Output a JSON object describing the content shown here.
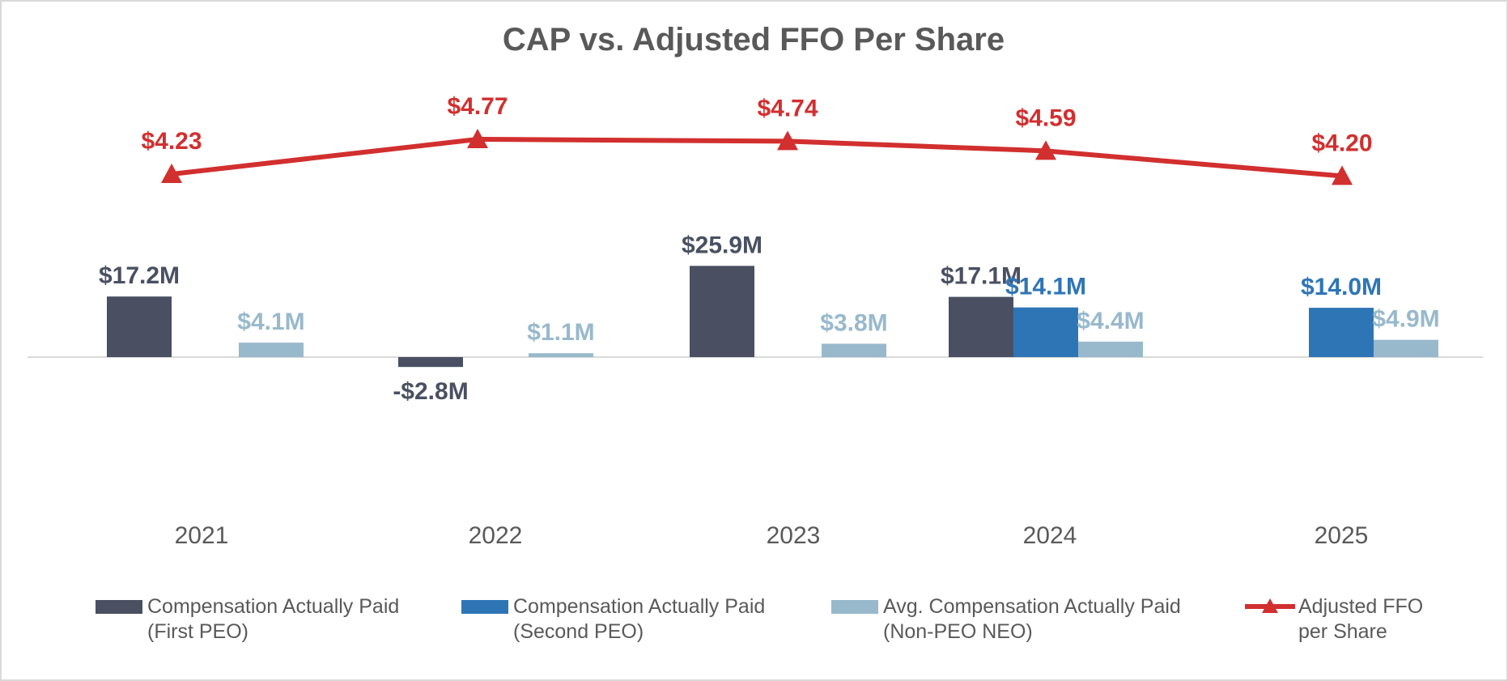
{
  "chart_data": {
    "type": "bar",
    "title": "CAP vs. Adjusted FFO Per Share",
    "categories": [
      "2021",
      "2022",
      "2023",
      "2024",
      "2025"
    ],
    "series": [
      {
        "name": "Compensation Actually Paid (First PEO)",
        "legend_lines": [
          "Compensation Actually Paid",
          "(First PEO)"
        ],
        "kind": "bar",
        "color": "#4a5062",
        "label_color": "#4a5062",
        "values": [
          17.2,
          -2.8,
          25.9,
          17.1,
          null
        ],
        "labels": [
          "$17.2M",
          "-$2.8M",
          "$25.9M",
          "$17.1M",
          null
        ]
      },
      {
        "name": "Compensation Actually Paid (Second PEO)",
        "legend_lines": [
          "Compensation Actually Paid",
          "(Second PEO)"
        ],
        "kind": "bar",
        "color": "#2e75b6",
        "label_color": "#2e75b6",
        "values": [
          null,
          null,
          null,
          14.1,
          14.0
        ],
        "labels": [
          null,
          null,
          null,
          "$14.1M",
          "$14.0M"
        ]
      },
      {
        "name": "Avg. Compensation Actually Paid (Non-PEO NEO)",
        "legend_lines": [
          "Avg. Compensation Actually Paid",
          "(Non-PEO NEO)"
        ],
        "kind": "bar",
        "color": "#98b9cc",
        "label_color": "#98b9cc",
        "values": [
          4.1,
          1.1,
          3.8,
          4.4,
          4.9
        ],
        "labels": [
          "$4.1M",
          "$1.1M",
          "$3.8M",
          "$4.4M",
          "$4.9M"
        ]
      },
      {
        "name": "Adjusted FFO per Share",
        "legend_lines": [
          "Adjusted FFO",
          "per Share"
        ],
        "kind": "line",
        "color": "#d22f2f",
        "label_color": "#d22f2f",
        "values": [
          4.23,
          4.77,
          4.74,
          4.59,
          4.2
        ],
        "labels": [
          "$4.23",
          "$4.77",
          "$4.74",
          "$4.59",
          "$4.20"
        ]
      }
    ],
    "legend_position": "bottom",
    "grid": false
  }
}
